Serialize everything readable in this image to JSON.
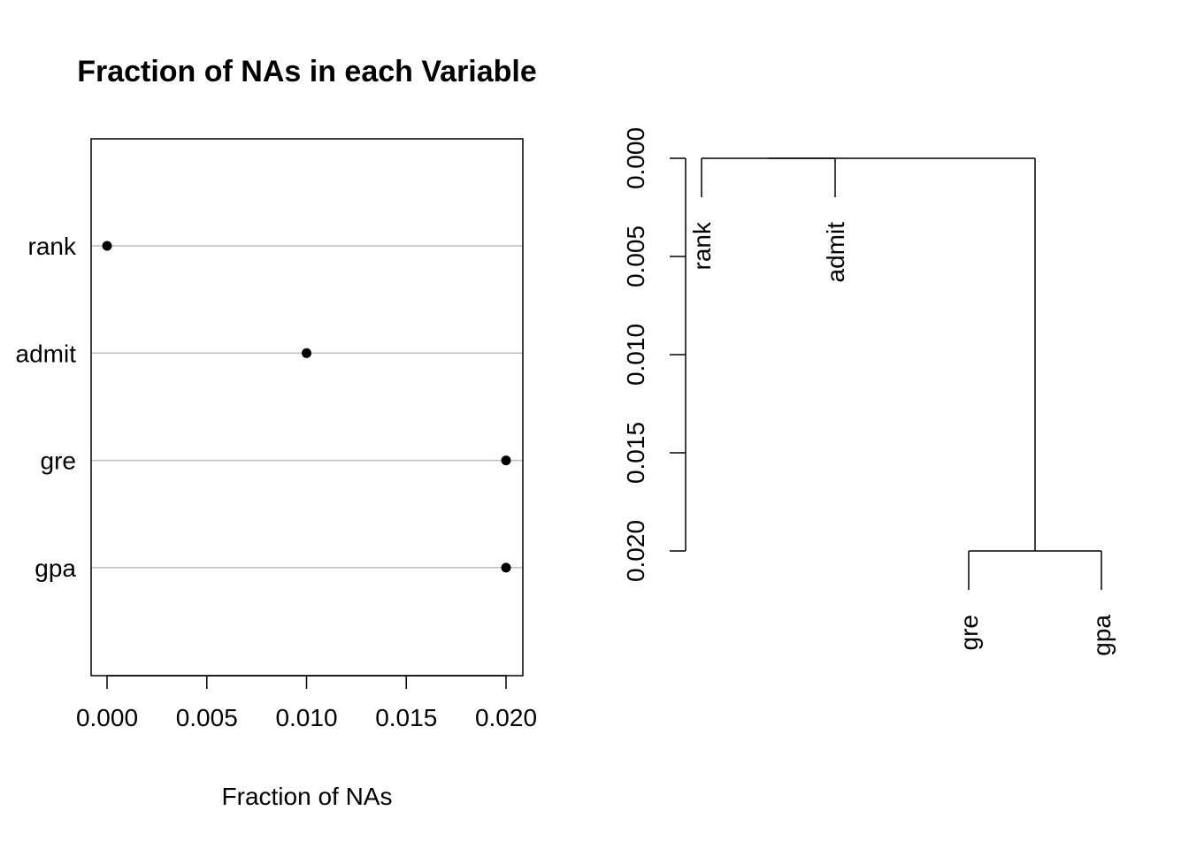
{
  "chart_data": [
    {
      "type": "scatter",
      "subtype": "dotchart",
      "title": "Fraction of NAs in each Variable",
      "xlabel": "Fraction of NAs",
      "ylabel": "",
      "categories": [
        "rank",
        "admit",
        "gre",
        "gpa"
      ],
      "values": [
        0.0,
        0.01,
        0.02,
        0.02
      ],
      "xlim": [
        0.0,
        0.02
      ],
      "x_ticks": [
        "0.000",
        "0.005",
        "0.010",
        "0.015",
        "0.020"
      ],
      "grid": true,
      "box": true
    },
    {
      "type": "dendrogram",
      "title": "",
      "ylabel": "",
      "leaves": [
        "rank",
        "admit",
        "gre",
        "gpa"
      ],
      "merges": [
        {
          "members": [
            "gre",
            "gpa"
          ],
          "height": 0.02
        },
        {
          "members": [
            "rank",
            "admit"
          ],
          "height": 0.0
        },
        {
          "members": [
            "rank",
            "admit",
            "gre",
            "gpa"
          ],
          "height": 0.0
        }
      ],
      "ylim": [
        0.0,
        0.02
      ],
      "y_ticks": [
        "0.000",
        "0.005",
        "0.010",
        "0.015",
        "0.020"
      ],
      "axis_reversed": true
    }
  ]
}
